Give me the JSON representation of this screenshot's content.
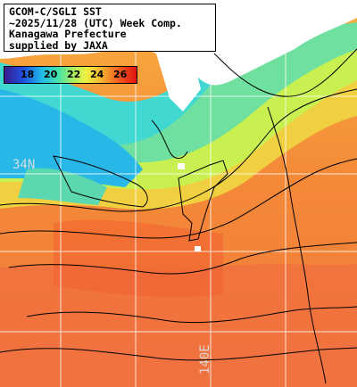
{
  "title": {
    "lines": [
      "GCOM-C/SGLI SST",
      "~2025/11/28 (UTC) Week Comp.",
      "Kanagawa Prefecture",
      "supplied by JAXA"
    ]
  },
  "colorbar": {
    "ticks": [
      "18",
      "20",
      "22",
      "24",
      "26"
    ],
    "min_color": "#3a1a8c",
    "max_color": "#e01010"
  },
  "grid_labels": {
    "latitude": "34N",
    "longitude": "140E"
  },
  "colors": {
    "land": "#ffffff",
    "sea_warm": "#f07030",
    "sea_cool": "#30c0e0",
    "grid": "#ffffff",
    "contour": "#000000"
  }
}
